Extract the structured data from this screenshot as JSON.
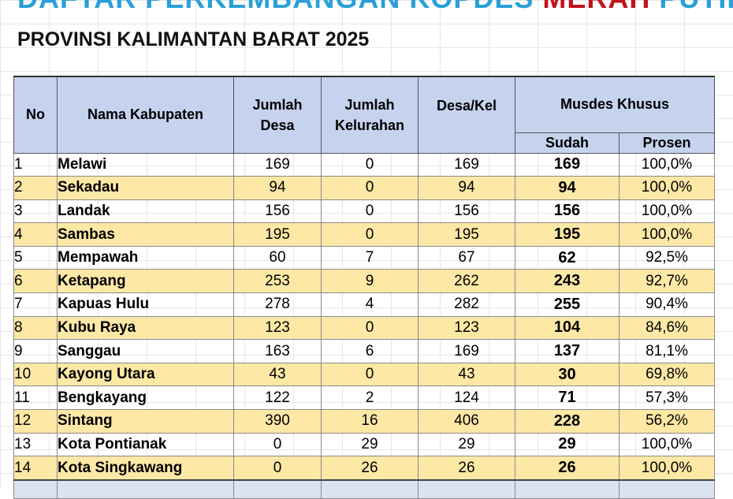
{
  "title": {
    "part1": "DAFTAR PERKEMBANGAN KOPDES ",
    "part2": "MERAH",
    "part3": " PUTIH",
    "subtitle": "PROVINSI KALIMANTAN BARAT 2025"
  },
  "colors": {
    "title_blue": "#2aa0d8",
    "title_red": "#c0141c",
    "header_fill": "#c5d3ee",
    "stripe_fill": "#fde8a6"
  },
  "headers": {
    "no": "No",
    "nama": "Nama Kabupaten",
    "desa": "Jumlah Desa",
    "kelurahan": "Jumlah Kelurahan",
    "desakel": "Desa/Kel",
    "musdes": "Musdes Khusus",
    "sudah": "Sudah",
    "prosen": "Prosen"
  },
  "rows": [
    {
      "no": "1",
      "nama": "Melawi",
      "desa": "169",
      "kelurahan": "0",
      "desakel": "169",
      "sudah": "169",
      "prosen": "100,0%"
    },
    {
      "no": "2",
      "nama": "Sekadau",
      "desa": "94",
      "kelurahan": "0",
      "desakel": "94",
      "sudah": "94",
      "prosen": "100,0%"
    },
    {
      "no": "3",
      "nama": "Landak",
      "desa": "156",
      "kelurahan": "0",
      "desakel": "156",
      "sudah": "156",
      "prosen": "100,0%"
    },
    {
      "no": "4",
      "nama": "Sambas",
      "desa": "195",
      "kelurahan": "0",
      "desakel": "195",
      "sudah": "195",
      "prosen": "100,0%"
    },
    {
      "no": "5",
      "nama": "Mempawah",
      "desa": "60",
      "kelurahan": "7",
      "desakel": "67",
      "sudah": "62",
      "prosen": "92,5%"
    },
    {
      "no": "6",
      "nama": "Ketapang",
      "desa": "253",
      "kelurahan": "9",
      "desakel": "262",
      "sudah": "243",
      "prosen": "92,7%"
    },
    {
      "no": "7",
      "nama": "Kapuas Hulu",
      "desa": "278",
      "kelurahan": "4",
      "desakel": "282",
      "sudah": "255",
      "prosen": "90,4%"
    },
    {
      "no": "8",
      "nama": "Kubu Raya",
      "desa": "123",
      "kelurahan": "0",
      "desakel": "123",
      "sudah": "104",
      "prosen": "84,6%"
    },
    {
      "no": "9",
      "nama": "Sanggau",
      "desa": "163",
      "kelurahan": "6",
      "desakel": "169",
      "sudah": "137",
      "prosen": "81,1%"
    },
    {
      "no": "10",
      "nama": "Kayong Utara",
      "desa": "43",
      "kelurahan": "0",
      "desakel": "43",
      "sudah": "30",
      "prosen": "69,8%"
    },
    {
      "no": "11",
      "nama": "Bengkayang",
      "desa": "122",
      "kelurahan": "2",
      "desakel": "124",
      "sudah": "71",
      "prosen": "57,3%"
    },
    {
      "no": "12",
      "nama": "Sintang",
      "desa": "390",
      "kelurahan": "16",
      "desakel": "406",
      "sudah": "228",
      "prosen": "56,2%"
    },
    {
      "no": "13",
      "nama": "Kota Pontianak",
      "desa": "0",
      "kelurahan": "29",
      "desakel": "29",
      "sudah": "29",
      "prosen": "100,0%"
    },
    {
      "no": "14",
      "nama": "Kota Singkawang",
      "desa": "0",
      "kelurahan": "26",
      "desakel": "26",
      "sudah": "26",
      "prosen": "100,0%"
    }
  ]
}
